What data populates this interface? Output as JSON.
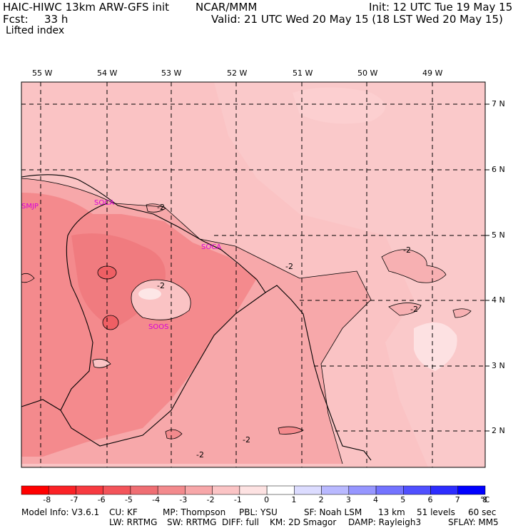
{
  "header": {
    "model": "HAIC-HIWC 13km ARW-GFS init",
    "org": "NCAR/MMM",
    "init": "Init: 12 UTC Tue 19 May 15",
    "fcst_label": "Fcst:",
    "fcst_value": "33 h",
    "valid": "Valid: 21 UTC Wed 20 May 15 (18 LST Wed 20 May 15)",
    "field": "Lifted index"
  },
  "map": {
    "lon_labels": [
      "55 W",
      "54 W",
      "53 W",
      "52 W",
      "51 W",
      "50 W",
      "49 W"
    ],
    "lat_labels": [
      "7 N",
      "6 N",
      "5 N",
      "4 N",
      "3 N",
      "2 N"
    ],
    "stations": [
      "SMJP",
      "SOCA",
      "SOCA",
      "SOOS"
    ],
    "contour_label": "-2",
    "colors": {
      "li_-4": "#f4898c",
      "li_-3": "#f7a5a7",
      "li_-2": "#fac3c4",
      "li_-1": "#fde1e2",
      "li_0": "#ffffff",
      "li_-5": "#ef5f64",
      "station": "#d800d8"
    }
  },
  "colorbar": {
    "labels": [
      "-8",
      "-7",
      "-6",
      "-5",
      "-4",
      "-3",
      "-2",
      "-1",
      "0",
      "1",
      "2",
      "3",
      "4",
      "5",
      "6",
      "7",
      "8"
    ],
    "unit": "°C",
    "colors": [
      "#ff0000",
      "#fb2226",
      "#f73a40",
      "#f3545a",
      "#ef6e73",
      "#f38a8d",
      "#f7a7a9",
      "#fbc4c5",
      "#fde2e2",
      "#ffffff",
      "#dcdcff",
      "#b9b9ff",
      "#9696ff",
      "#7373ff",
      "#5050ff",
      "#2d2dff",
      "#0000ff"
    ]
  },
  "footer": {
    "line1": [
      {
        "label": "Model Info: V3.6.1"
      },
      {
        "label": "CU: KF"
      },
      {
        "label": "MP: Thompson"
      },
      {
        "label": "PBL: YSU"
      },
      {
        "label": "SF: Noah LSM"
      },
      {
        "label": "13 km"
      },
      {
        "label": "51 levels"
      },
      {
        "label": "60 sec"
      }
    ],
    "line2": [
      {
        "label": "LW: RRTMG"
      },
      {
        "label": "SW: RRTMG"
      },
      {
        "label": "DIFF: full"
      },
      {
        "label": "KM: 2D Smagor"
      },
      {
        "label": "DAMP: Rayleigh3"
      },
      {
        "label": "SFLAY: MM5"
      }
    ]
  }
}
